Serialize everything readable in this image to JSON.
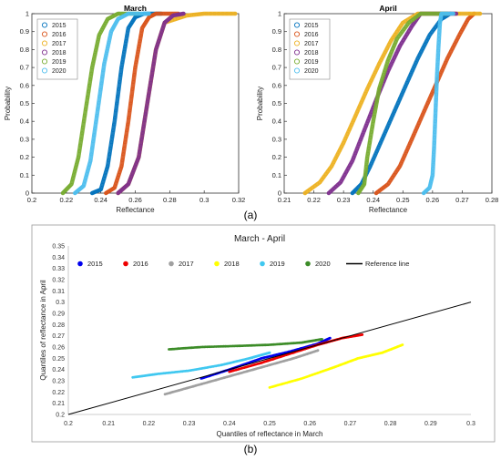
{
  "chart_data": [
    {
      "type": "line",
      "title": "March",
      "xlabel": "Reflectance",
      "ylabel": "Probability",
      "xlim": [
        0.2,
        0.32
      ],
      "ylim": [
        0,
        1
      ],
      "xticks": [
        "0.2",
        "0.22",
        "0.24",
        "0.26",
        "0.28",
        "0.3",
        "0.32"
      ],
      "yticks": [
        "0",
        "0.1",
        "0.2",
        "0.3",
        "0.4",
        "0.5",
        "0.6",
        "0.7",
        "0.8",
        "0.9",
        "1"
      ],
      "legend_position": "top-left",
      "grid": false,
      "series": [
        {
          "name": "2015",
          "color": "#0072BD",
          "marker": "circle",
          "x": [
            0.235,
            0.24,
            0.244,
            0.248,
            0.252,
            0.256,
            0.26,
            0.265,
            0.275
          ],
          "y": [
            0.0,
            0.02,
            0.15,
            0.4,
            0.7,
            0.92,
            0.98,
            1.0,
            1.0
          ]
        },
        {
          "name": "2016",
          "color": "#D95319",
          "marker": "circle",
          "x": [
            0.243,
            0.248,
            0.252,
            0.256,
            0.26,
            0.264,
            0.268,
            0.272,
            0.285
          ],
          "y": [
            0.0,
            0.03,
            0.15,
            0.4,
            0.7,
            0.92,
            0.98,
            1.0,
            1.0
          ]
        },
        {
          "name": "2017",
          "color": "#EDB120",
          "marker": "circle",
          "x": [
            0.25,
            0.256,
            0.262,
            0.267,
            0.272,
            0.277,
            0.29,
            0.3,
            0.318
          ],
          "y": [
            0.0,
            0.05,
            0.2,
            0.5,
            0.8,
            0.95,
            0.99,
            1.0,
            1.0
          ]
        },
        {
          "name": "2018",
          "color": "#7E2F8E",
          "marker": "circle",
          "x": [
            0.25,
            0.256,
            0.262,
            0.267,
            0.272,
            0.277,
            0.282,
            0.288
          ],
          "y": [
            0.0,
            0.05,
            0.2,
            0.5,
            0.8,
            0.95,
            0.99,
            1.0
          ]
        },
        {
          "name": "2019",
          "color": "#77AC30",
          "marker": "circle",
          "x": [
            0.218,
            0.223,
            0.227,
            0.231,
            0.235,
            0.239,
            0.244,
            0.25,
            0.262
          ],
          "y": [
            0.0,
            0.05,
            0.2,
            0.45,
            0.7,
            0.88,
            0.97,
            1.0,
            1.0
          ]
        },
        {
          "name": "2020",
          "color": "#4DBEEE",
          "marker": "circle",
          "x": [
            0.225,
            0.23,
            0.234,
            0.238,
            0.242,
            0.246,
            0.25,
            0.256,
            0.268
          ],
          "y": [
            0.0,
            0.04,
            0.18,
            0.45,
            0.72,
            0.9,
            0.97,
            1.0,
            1.0
          ]
        }
      ]
    },
    {
      "type": "line",
      "title": "April",
      "xlabel": "Reflectance",
      "ylabel": "Probability",
      "xlim": [
        0.21,
        0.28
      ],
      "ylim": [
        0,
        1
      ],
      "xticks": [
        "0.21",
        "0.22",
        "0.23",
        "0.24",
        "0.25",
        "0.26",
        "0.27",
        "0.28"
      ],
      "yticks": [
        "0",
        "0.1",
        "0.2",
        "0.3",
        "0.4",
        "0.5",
        "0.6",
        "0.7",
        "0.8",
        "0.9",
        "1"
      ],
      "legend_position": "top-left",
      "grid": false,
      "series": [
        {
          "name": "2015",
          "color": "#0072BD",
          "marker": "circle",
          "x": [
            0.233,
            0.236,
            0.239,
            0.243,
            0.247,
            0.251,
            0.255,
            0.259,
            0.263,
            0.266
          ],
          "y": [
            0.0,
            0.05,
            0.15,
            0.3,
            0.45,
            0.6,
            0.75,
            0.88,
            0.97,
            1.0
          ]
        },
        {
          "name": "2016",
          "color": "#D95319",
          "marker": "circle",
          "x": [
            0.241,
            0.245,
            0.249,
            0.253,
            0.257,
            0.261,
            0.265,
            0.269,
            0.272,
            0.274
          ],
          "y": [
            0.0,
            0.05,
            0.15,
            0.3,
            0.45,
            0.6,
            0.75,
            0.88,
            0.97,
            1.0
          ]
        },
        {
          "name": "2017",
          "color": "#EDB120",
          "marker": "circle",
          "x": [
            0.217,
            0.222,
            0.226,
            0.23,
            0.234,
            0.238,
            0.242,
            0.246,
            0.25,
            0.255,
            0.276
          ],
          "y": [
            0.0,
            0.06,
            0.15,
            0.28,
            0.43,
            0.58,
            0.72,
            0.85,
            0.95,
            1.0,
            1.0
          ]
        },
        {
          "name": "2018",
          "color": "#7E2F8E",
          "marker": "circle",
          "x": [
            0.225,
            0.229,
            0.233,
            0.237,
            0.241,
            0.245,
            0.249,
            0.253,
            0.256,
            0.268
          ],
          "y": [
            0.0,
            0.06,
            0.18,
            0.35,
            0.52,
            0.68,
            0.82,
            0.93,
            1.0,
            1.0
          ]
        },
        {
          "name": "2019",
          "color": "#77AC30",
          "marker": "circle",
          "x": [
            0.235,
            0.237,
            0.238,
            0.24,
            0.242,
            0.245,
            0.248,
            0.252,
            0.256,
            0.265
          ],
          "y": [
            0.0,
            0.05,
            0.2,
            0.4,
            0.58,
            0.74,
            0.86,
            0.95,
            1.0,
            1.0
          ]
        },
        {
          "name": "2020",
          "color": "#4DBEEE",
          "marker": "circle",
          "x": [
            0.257,
            0.259,
            0.26,
            0.2605,
            0.261,
            0.2615,
            0.262,
            0.2625,
            0.263,
            0.267
          ],
          "y": [
            0.0,
            0.03,
            0.1,
            0.25,
            0.45,
            0.65,
            0.82,
            0.95,
            1.0,
            1.0
          ]
        }
      ]
    },
    {
      "type": "scatter",
      "title": "March - April",
      "xlabel": "Quantiles of  reflectance in March",
      "ylabel": "Quantiles of  reflectance in April",
      "xlim": [
        0.2,
        0.3
      ],
      "ylim": [
        0.2,
        0.35
      ],
      "xticks": [
        "0.2",
        "0.21",
        "0.22",
        "0.23",
        "0.24",
        "0.25",
        "0.26",
        "0.27",
        "0.28",
        "0.29",
        "0.3"
      ],
      "yticks": [
        "0.2",
        "0.21",
        "0.22",
        "0.23",
        "0.24",
        "0.25",
        "0.26",
        "0.27",
        "0.28",
        "0.29",
        "0.3",
        "0.31",
        "0.32",
        "0.33",
        "0.34",
        "0.35"
      ],
      "legend_position": "top",
      "grid": false,
      "series": [
        {
          "name": "2015",
          "color": "#0000EE",
          "x": [
            0.233,
            0.24,
            0.248,
            0.255,
            0.262,
            0.265
          ],
          "y": [
            0.232,
            0.24,
            0.25,
            0.256,
            0.263,
            0.268
          ]
        },
        {
          "name": "2016",
          "color": "#EE0000",
          "x": [
            0.24,
            0.248,
            0.255,
            0.262,
            0.268,
            0.273
          ],
          "y": [
            0.238,
            0.246,
            0.254,
            0.262,
            0.268,
            0.271
          ]
        },
        {
          "name": "2017",
          "color": "#A0A0A0",
          "x": [
            0.224,
            0.232,
            0.24,
            0.248,
            0.256,
            0.262
          ],
          "y": [
            0.218,
            0.226,
            0.234,
            0.242,
            0.25,
            0.257
          ]
        },
        {
          "name": "2018",
          "color": "#FFFF00",
          "x": [
            0.25,
            0.258,
            0.266,
            0.272,
            0.278,
            0.283
          ],
          "y": [
            0.224,
            0.232,
            0.242,
            0.25,
            0.255,
            0.262
          ]
        },
        {
          "name": "2019",
          "color": "#40C8F0",
          "x": [
            0.216,
            0.222,
            0.23,
            0.238,
            0.245,
            0.25
          ],
          "y": [
            0.233,
            0.236,
            0.239,
            0.244,
            0.25,
            0.255
          ]
        },
        {
          "name": "2020",
          "color": "#3C8C28",
          "x": [
            0.225,
            0.233,
            0.242,
            0.25,
            0.258,
            0.263
          ],
          "y": [
            0.258,
            0.26,
            0.261,
            0.262,
            0.264,
            0.267
          ]
        },
        {
          "name": "Reference line",
          "color": "#000000",
          "type": "line",
          "x": [
            0.2,
            0.3
          ],
          "y": [
            0.2,
            0.3
          ]
        }
      ]
    }
  ],
  "captions": {
    "a": "(a)",
    "b": "(b)"
  }
}
